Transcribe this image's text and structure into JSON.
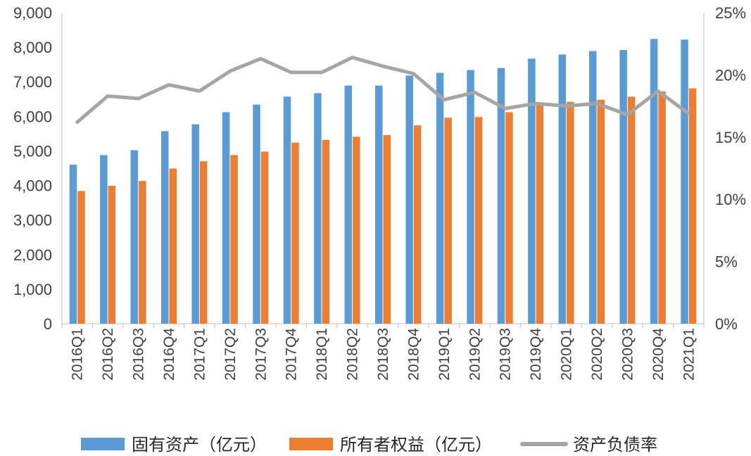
{
  "chart_data": {
    "type": "bar",
    "title": "",
    "categories": [
      "2016Q1",
      "2016Q2",
      "2016Q3",
      "2016Q4",
      "2017Q1",
      "2017Q2",
      "2017Q3",
      "2017Q4",
      "2018Q1",
      "2018Q2",
      "2018Q3",
      "2018Q4",
      "2019Q1",
      "2019Q2",
      "2019Q3",
      "2019Q4",
      "2020Q1",
      "2020Q2",
      "2020Q3",
      "2020Q4",
      "2021Q1"
    ],
    "series": [
      {
        "name": "固有资产（亿元）",
        "type": "bar",
        "axis": "left",
        "color": "#5B9BD5",
        "values": [
          4600,
          4880,
          5020,
          5570,
          5770,
          6120,
          6340,
          6570,
          6670,
          6890,
          6890,
          7180,
          7260,
          7340,
          7400,
          7670,
          7790,
          7890,
          7920,
          8240,
          8220
        ]
      },
      {
        "name": "所有者权益（亿元）",
        "type": "bar",
        "axis": "left",
        "color": "#ED7D31",
        "values": [
          3840,
          3990,
          4130,
          4490,
          4700,
          4880,
          4980,
          5240,
          5320,
          5410,
          5460,
          5740,
          5960,
          5980,
          6120,
          6400,
          6420,
          6480,
          6570,
          6720,
          6810
        ]
      },
      {
        "name": "资产负债率",
        "type": "line",
        "axis": "right",
        "color": "#A5A5A5",
        "values": [
          16.2,
          18.3,
          18.1,
          19.2,
          18.7,
          20.3,
          21.3,
          20.2,
          20.2,
          21.4,
          20.7,
          20.1,
          18.0,
          18.6,
          17.3,
          17.7,
          17.5,
          17.7,
          16.8,
          18.7,
          16.9
        ]
      }
    ],
    "y_left": {
      "ylim": [
        0,
        9000
      ],
      "ticks": [
        "0",
        "1,000",
        "2,000",
        "3,000",
        "4,000",
        "5,000",
        "6,000",
        "7,000",
        "8,000",
        "9,000"
      ]
    },
    "y_right": {
      "ylim": [
        0,
        25
      ],
      "ticks": [
        "0%",
        "5%",
        "10%",
        "15%",
        "20%",
        "25%"
      ]
    },
    "xlabel": "",
    "ylabel": "",
    "legend_position": "bottom",
    "grid": false
  }
}
